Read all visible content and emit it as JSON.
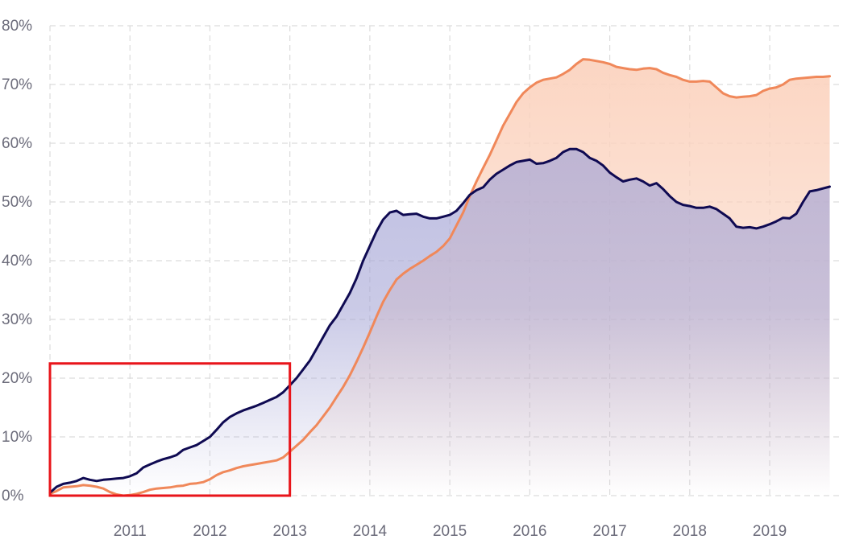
{
  "chart_data": {
    "type": "area",
    "title": "",
    "xlabel": "",
    "ylabel": "",
    "x_ticks": [
      "2011",
      "2012",
      "2013",
      "2014",
      "2015",
      "2016",
      "2017",
      "2018",
      "2019"
    ],
    "y_ticks": [
      "0%",
      "10%",
      "20%",
      "30%",
      "40%",
      "50%",
      "60%",
      "70%",
      "80%"
    ],
    "xlim": [
      "2010-01",
      "2019-12"
    ],
    "ylim": [
      0,
      80
    ],
    "grid": true,
    "legend": "none",
    "series": [
      {
        "color": "#0f0a52",
        "fill_top": "#a6a6d6",
        "points": [
          [
            "2010-01",
            0.5
          ],
          [
            "2010-02",
            1.5
          ],
          [
            "2010-03",
            2.0
          ],
          [
            "2010-04",
            2.2
          ],
          [
            "2010-05",
            2.5
          ],
          [
            "2010-06",
            3.0
          ],
          [
            "2010-07",
            2.7
          ],
          [
            "2010-08",
            2.5
          ],
          [
            "2010-09",
            2.7
          ],
          [
            "2010-10",
            2.8
          ],
          [
            "2010-11",
            2.9
          ],
          [
            "2010-12",
            3.0
          ],
          [
            "2011-01",
            3.3
          ],
          [
            "2011-02",
            3.8
          ],
          [
            "2011-03",
            4.8
          ],
          [
            "2011-04",
            5.3
          ],
          [
            "2011-05",
            5.8
          ],
          [
            "2011-06",
            6.2
          ],
          [
            "2011-07",
            6.5
          ],
          [
            "2011-08",
            6.9
          ],
          [
            "2011-09",
            7.8
          ],
          [
            "2011-10",
            8.2
          ],
          [
            "2011-11",
            8.6
          ],
          [
            "2011-12",
            9.3
          ],
          [
            "2012-01",
            10.0
          ],
          [
            "2012-02",
            11.2
          ],
          [
            "2012-03",
            12.5
          ],
          [
            "2012-04",
            13.4
          ],
          [
            "2012-05",
            14.0
          ],
          [
            "2012-06",
            14.5
          ],
          [
            "2012-07",
            14.9
          ],
          [
            "2012-08",
            15.3
          ],
          [
            "2012-09",
            15.8
          ],
          [
            "2012-10",
            16.3
          ],
          [
            "2012-11",
            16.8
          ],
          [
            "2012-12",
            17.6
          ],
          [
            "2013-01",
            18.8
          ],
          [
            "2013-02",
            20.0
          ],
          [
            "2013-03",
            21.5
          ],
          [
            "2013-04",
            23.0
          ],
          [
            "2013-05",
            25.0
          ],
          [
            "2013-06",
            27.0
          ],
          [
            "2013-07",
            29.0
          ],
          [
            "2013-08",
            30.5
          ],
          [
            "2013-09",
            32.5
          ],
          [
            "2013-10",
            34.5
          ],
          [
            "2013-11",
            37.0
          ],
          [
            "2013-12",
            40.0
          ],
          [
            "2014-01",
            42.5
          ],
          [
            "2014-02",
            45.0
          ],
          [
            "2014-03",
            47.0
          ],
          [
            "2014-04",
            48.2
          ],
          [
            "2014-05",
            48.5
          ],
          [
            "2014-06",
            47.8
          ],
          [
            "2014-07",
            47.9
          ],
          [
            "2014-08",
            48.0
          ],
          [
            "2014-09",
            47.5
          ],
          [
            "2014-10",
            47.2
          ],
          [
            "2014-11",
            47.2
          ],
          [
            "2014-12",
            47.5
          ],
          [
            "2015-01",
            47.8
          ],
          [
            "2015-02",
            48.5
          ],
          [
            "2015-03",
            49.8
          ],
          [
            "2015-04",
            51.2
          ],
          [
            "2015-05",
            52.0
          ],
          [
            "2015-06",
            52.5
          ],
          [
            "2015-07",
            53.8
          ],
          [
            "2015-08",
            54.8
          ],
          [
            "2015-09",
            55.5
          ],
          [
            "2015-10",
            56.2
          ],
          [
            "2015-11",
            56.8
          ],
          [
            "2015-12",
            57.0
          ],
          [
            "2016-01",
            57.2
          ],
          [
            "2016-02",
            56.5
          ],
          [
            "2016-03",
            56.6
          ],
          [
            "2016-04",
            57.0
          ],
          [
            "2016-05",
            57.5
          ],
          [
            "2016-06",
            58.5
          ],
          [
            "2016-07",
            59.0
          ],
          [
            "2016-08",
            59.0
          ],
          [
            "2016-09",
            58.5
          ],
          [
            "2016-10",
            57.5
          ],
          [
            "2016-11",
            57.0
          ],
          [
            "2016-12",
            56.2
          ],
          [
            "2017-01",
            55.0
          ],
          [
            "2017-02",
            54.2
          ],
          [
            "2017-03",
            53.5
          ],
          [
            "2017-04",
            53.8
          ],
          [
            "2017-05",
            54.0
          ],
          [
            "2017-06",
            53.5
          ],
          [
            "2017-07",
            52.8
          ],
          [
            "2017-08",
            53.2
          ],
          [
            "2017-09",
            52.2
          ],
          [
            "2017-10",
            51.0
          ],
          [
            "2017-11",
            50.0
          ],
          [
            "2017-12",
            49.5
          ],
          [
            "2018-01",
            49.3
          ],
          [
            "2018-02",
            49.0
          ],
          [
            "2018-03",
            49.0
          ],
          [
            "2018-04",
            49.2
          ],
          [
            "2018-05",
            48.8
          ],
          [
            "2018-06",
            48.0
          ],
          [
            "2018-07",
            47.2
          ],
          [
            "2018-08",
            45.8
          ],
          [
            "2018-09",
            45.6
          ],
          [
            "2018-10",
            45.7
          ],
          [
            "2018-11",
            45.5
          ],
          [
            "2018-12",
            45.8
          ],
          [
            "2019-01",
            46.2
          ],
          [
            "2019-02",
            46.7
          ],
          [
            "2019-03",
            47.3
          ],
          [
            "2019-04",
            47.2
          ],
          [
            "2019-05",
            48.0
          ],
          [
            "2019-06",
            50.0
          ],
          [
            "2019-07",
            51.8
          ],
          [
            "2019-08",
            52.0
          ],
          [
            "2019-09",
            52.3
          ],
          [
            "2019-10",
            52.6
          ]
        ]
      },
      {
        "color": "#f0885a",
        "fill_top": "#fbd3bf",
        "points": [
          [
            "2010-01",
            0.3
          ],
          [
            "2010-02",
            0.8
          ],
          [
            "2010-03",
            1.4
          ],
          [
            "2010-04",
            1.5
          ],
          [
            "2010-05",
            1.6
          ],
          [
            "2010-06",
            1.8
          ],
          [
            "2010-07",
            1.7
          ],
          [
            "2010-08",
            1.5
          ],
          [
            "2010-09",
            1.2
          ],
          [
            "2010-10",
            0.6
          ],
          [
            "2010-11",
            0.2
          ],
          [
            "2010-12",
            0.0
          ],
          [
            "2011-01",
            0.1
          ],
          [
            "2011-02",
            0.3
          ],
          [
            "2011-03",
            0.6
          ],
          [
            "2011-04",
            1.0
          ],
          [
            "2011-05",
            1.2
          ],
          [
            "2011-06",
            1.3
          ],
          [
            "2011-07",
            1.4
          ],
          [
            "2011-08",
            1.6
          ],
          [
            "2011-09",
            1.7
          ],
          [
            "2011-10",
            2.0
          ],
          [
            "2011-11",
            2.1
          ],
          [
            "2011-12",
            2.3
          ],
          [
            "2012-01",
            2.8
          ],
          [
            "2012-02",
            3.5
          ],
          [
            "2012-03",
            4.0
          ],
          [
            "2012-04",
            4.3
          ],
          [
            "2012-05",
            4.7
          ],
          [
            "2012-06",
            5.0
          ],
          [
            "2012-07",
            5.2
          ],
          [
            "2012-08",
            5.4
          ],
          [
            "2012-09",
            5.6
          ],
          [
            "2012-10",
            5.8
          ],
          [
            "2012-11",
            6.0
          ],
          [
            "2012-12",
            6.5
          ],
          [
            "2013-01",
            7.5
          ],
          [
            "2013-02",
            8.5
          ],
          [
            "2013-03",
            9.5
          ],
          [
            "2013-04",
            10.8
          ],
          [
            "2013-05",
            12.0
          ],
          [
            "2013-06",
            13.5
          ],
          [
            "2013-07",
            15.0
          ],
          [
            "2013-08",
            16.8
          ],
          [
            "2013-09",
            18.5
          ],
          [
            "2013-10",
            20.5
          ],
          [
            "2013-11",
            22.8
          ],
          [
            "2013-12",
            25.2
          ],
          [
            "2014-01",
            27.8
          ],
          [
            "2014-02",
            30.5
          ],
          [
            "2014-03",
            33.0
          ],
          [
            "2014-04",
            35.0
          ],
          [
            "2014-05",
            36.8
          ],
          [
            "2014-06",
            37.8
          ],
          [
            "2014-07",
            38.6
          ],
          [
            "2014-08",
            39.3
          ],
          [
            "2014-09",
            40.0
          ],
          [
            "2014-10",
            40.8
          ],
          [
            "2014-11",
            41.5
          ],
          [
            "2014-12",
            42.5
          ],
          [
            "2015-01",
            43.8
          ],
          [
            "2015-02",
            46.0
          ],
          [
            "2015-03",
            48.2
          ],
          [
            "2015-04",
            51.0
          ],
          [
            "2015-05",
            53.5
          ],
          [
            "2015-06",
            55.8
          ],
          [
            "2015-07",
            58.0
          ],
          [
            "2015-08",
            60.5
          ],
          [
            "2015-09",
            63.0
          ],
          [
            "2015-10",
            65.0
          ],
          [
            "2015-11",
            67.0
          ],
          [
            "2015-12",
            68.5
          ],
          [
            "2016-01",
            69.5
          ],
          [
            "2016-02",
            70.3
          ],
          [
            "2016-03",
            70.8
          ],
          [
            "2016-04",
            71.0
          ],
          [
            "2016-05",
            71.2
          ],
          [
            "2016-06",
            71.8
          ],
          [
            "2016-07",
            72.5
          ],
          [
            "2016-08",
            73.5
          ],
          [
            "2016-09",
            74.3
          ],
          [
            "2016-10",
            74.2
          ],
          [
            "2016-11",
            74.0
          ],
          [
            "2016-12",
            73.8
          ],
          [
            "2017-01",
            73.5
          ],
          [
            "2017-02",
            73.0
          ],
          [
            "2017-03",
            72.8
          ],
          [
            "2017-04",
            72.6
          ],
          [
            "2017-05",
            72.5
          ],
          [
            "2017-06",
            72.7
          ],
          [
            "2017-07",
            72.8
          ],
          [
            "2017-08",
            72.6
          ],
          [
            "2017-09",
            72.0
          ],
          [
            "2017-10",
            71.6
          ],
          [
            "2017-11",
            71.3
          ],
          [
            "2017-12",
            70.8
          ],
          [
            "2018-01",
            70.5
          ],
          [
            "2018-02",
            70.5
          ],
          [
            "2018-03",
            70.6
          ],
          [
            "2018-04",
            70.5
          ],
          [
            "2018-05",
            69.5
          ],
          [
            "2018-06",
            68.5
          ],
          [
            "2018-07",
            68.0
          ],
          [
            "2018-08",
            67.8
          ],
          [
            "2018-09",
            67.9
          ],
          [
            "2018-10",
            68.0
          ],
          [
            "2018-11",
            68.2
          ],
          [
            "2018-12",
            68.9
          ],
          [
            "2019-01",
            69.3
          ],
          [
            "2019-02",
            69.5
          ],
          [
            "2019-03",
            70.0
          ],
          [
            "2019-04",
            70.8
          ],
          [
            "2019-05",
            71.0
          ],
          [
            "2019-06",
            71.1
          ],
          [
            "2019-07",
            71.2
          ],
          [
            "2019-08",
            71.3
          ],
          [
            "2019-09",
            71.3
          ],
          [
            "2019-10",
            71.4
          ]
        ]
      }
    ],
    "highlight_box": {
      "x_range": [
        "2010-01",
        "2013-01"
      ],
      "y_range": [
        0,
        22.5
      ],
      "color": "#e8141a"
    },
    "colors": {
      "grid": "#dcdcdc",
      "tick_text": "#6b6b7a",
      "background": "#ffffff"
    }
  }
}
